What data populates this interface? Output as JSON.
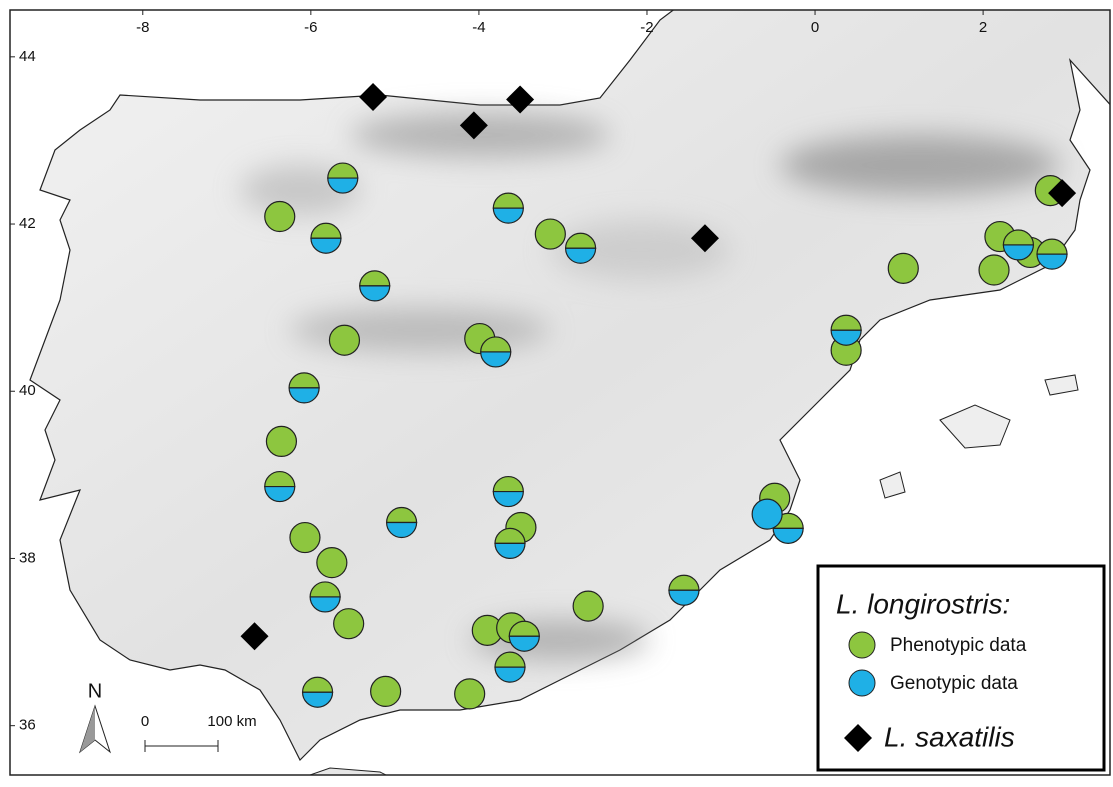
{
  "map": {
    "xlim": [
      -9.58,
      3.51
    ],
    "ylim": [
      35.41,
      44.56
    ],
    "xticks": [
      -8,
      -6,
      -4,
      -2,
      0,
      2
    ],
    "yticks": [
      44,
      42,
      40,
      38,
      36
    ],
    "legend_title": "L. longirostris:",
    "series": [
      {
        "name": "Phenotypic data",
        "color": "#8dc63f",
        "marker": "circle",
        "x": [
          -6.37,
          -5.6,
          -3.99,
          -3.15,
          1.05,
          2.2,
          2.13,
          2.56,
          0.37,
          -6.35,
          -6.07,
          -5.75,
          -5.55,
          -5.11,
          -4.11,
          -3.9,
          -3.61,
          -3.5,
          -2.7,
          -0.48,
          2.8,
          -5.62,
          -5.82,
          -5.24,
          -3.65,
          -2.79,
          -3.8,
          -6.08,
          -6.37,
          -4.92,
          -3.65,
          -3.63,
          -5.83,
          -3.46,
          -3.63,
          -5.92,
          -1.56,
          -0.32,
          0.37,
          2.42,
          2.82
        ],
        "y": [
          42.09,
          40.61,
          40.63,
          41.88,
          41.47,
          41.85,
          41.45,
          41.66,
          40.49,
          39.4,
          38.25,
          37.95,
          37.22,
          36.41,
          36.38,
          37.14,
          37.17,
          38.37,
          37.43,
          38.72,
          42.4,
          42.55,
          41.83,
          41.26,
          42.19,
          41.71,
          40.47,
          40.04,
          38.86,
          38.43,
          38.8,
          38.18,
          37.54,
          37.07,
          36.7,
          36.4,
          37.62,
          38.36,
          40.73,
          41.75,
          41.64
        ]
      },
      {
        "name": "Genotypic data",
        "color": "#1fb0e6",
        "marker": "circle",
        "x": [
          -5.62,
          -5.82,
          -5.24,
          -3.65,
          -2.79,
          -3.8,
          -6.08,
          -6.37,
          -4.92,
          -3.65,
          -3.63,
          -5.83,
          -3.46,
          -3.63,
          -5.92,
          -1.56,
          -0.32,
          0.37,
          2.42,
          2.82,
          -0.57
        ],
        "y": [
          42.55,
          41.83,
          41.26,
          42.19,
          41.71,
          40.47,
          40.04,
          38.86,
          38.43,
          38.8,
          38.18,
          37.54,
          37.07,
          36.7,
          36.4,
          37.62,
          38.36,
          40.73,
          41.75,
          41.64,
          38.53
        ]
      },
      {
        "name": "L. saxatilis",
        "color": "#000000",
        "marker": "diamond",
        "x": [
          -5.26,
          -3.51,
          -4.06,
          -1.31,
          2.94,
          -6.67
        ],
        "y": [
          43.52,
          43.49,
          43.18,
          41.83,
          42.37,
          37.07
        ]
      }
    ],
    "north_label": "N",
    "scale_bar": {
      "start_label": "0",
      "end_label": "100 km"
    }
  }
}
